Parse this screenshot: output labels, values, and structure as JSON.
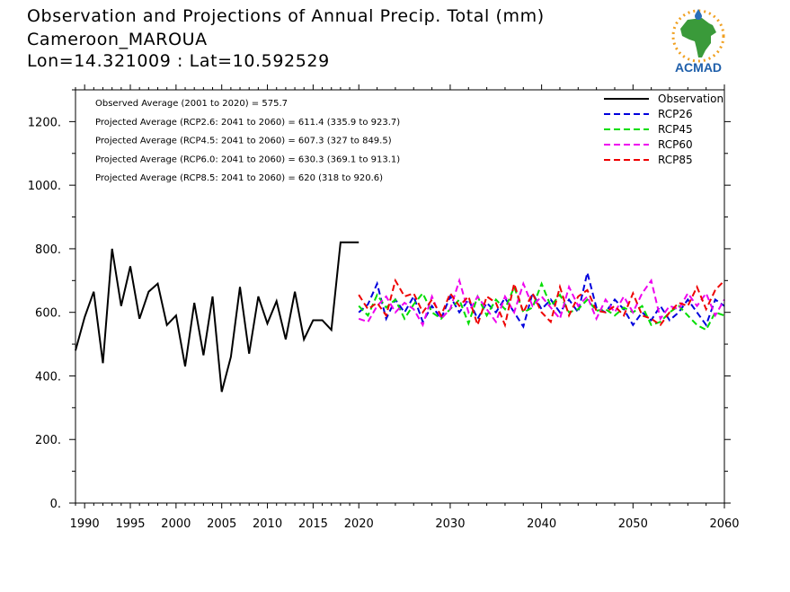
{
  "header": {
    "title": "Observation and Projections of Annual Precip. Total (mm)",
    "location": "Cameroon_MAROUA",
    "coords": "Lon=14.321009 : Lat=10.592529"
  },
  "logo": {
    "text": "ACMAD",
    "icon": "africa-map-logo-icon",
    "colors": {
      "africa": "#3a9a3a",
      "rays": "#f0a020",
      "drop": "#2a6fb8",
      "text": "#1f5faa"
    }
  },
  "chart_data": {
    "type": "line",
    "xlim": [
      1989,
      2060
    ],
    "ylim": [
      0,
      1300
    ],
    "xticks": [
      1990,
      1995,
      2000,
      2005,
      2010,
      2015,
      2020,
      2030,
      2040,
      2050,
      2060
    ],
    "yticks": [
      0,
      200,
      400,
      600,
      800,
      1000,
      1200
    ],
    "ytick_labels": [
      "0.",
      "200.",
      "400.",
      "600.",
      "800.",
      "1000.",
      "1200."
    ],
    "grid": false,
    "legend_position": "top-right",
    "annotations": [
      "Observed Average (2001 to 2020) = 575.7",
      "Projected Average (RCP2.6: 2041 to 2060) = 611.4 (335.9 to 923.7)",
      "Projected Average (RCP4.5: 2041 to 2060) = 607.3 (327 to 849.5)",
      "Projected Average (RCP6.0: 2041 to 2060) = 630.3 (369.1 to 913.1)",
      "Projected Average (RCP8.5: 2041 to 2060) = 620 (318 to 920.6)"
    ],
    "series": [
      {
        "name": "Observation",
        "color": "#000000",
        "dashed": false,
        "x": [
          1989,
          1990,
          1991,
          1992,
          1993,
          1994,
          1995,
          1996,
          1997,
          1998,
          1999,
          2000,
          2001,
          2002,
          2003,
          2004,
          2005,
          2006,
          2007,
          2008,
          2009,
          2010,
          2011,
          2012,
          2013,
          2014,
          2015,
          2016,
          2017,
          2018,
          2019,
          2020
        ],
        "y": [
          480,
          585,
          665,
          440,
          800,
          620,
          745,
          580,
          665,
          690,
          560,
          590,
          430,
          630,
          465,
          650,
          350,
          460,
          680,
          470,
          650,
          565,
          635,
          515,
          665,
          515,
          575,
          575,
          545,
          820,
          820,
          820
        ]
      },
      {
        "name": "RCP26",
        "color": "#0000dd",
        "dashed": true,
        "x": [
          2020,
          2021,
          2022,
          2023,
          2024,
          2025,
          2026,
          2027,
          2028,
          2029,
          2030,
          2031,
          2032,
          2033,
          2034,
          2035,
          2036,
          2037,
          2038,
          2039,
          2040,
          2041,
          2042,
          2043,
          2044,
          2045,
          2046,
          2047,
          2048,
          2049,
          2050,
          2051,
          2052,
          2053,
          2054,
          2055,
          2056,
          2057,
          2058,
          2059,
          2060
        ],
        "y": [
          600,
          625,
          690,
          580,
          640,
          600,
          650,
          570,
          620,
          580,
          650,
          600,
          640,
          580,
          630,
          600,
          645,
          600,
          555,
          660,
          610,
          640,
          600,
          640,
          600,
          725,
          615,
          600,
          640,
          610,
          560,
          600,
          575,
          620,
          575,
          600,
          640,
          600,
          560,
          640,
          620
        ]
      },
      {
        "name": "RCP45",
        "color": "#00dd00",
        "dashed": true,
        "x": [
          2020,
          2021,
          2022,
          2023,
          2024,
          2025,
          2026,
          2027,
          2028,
          2029,
          2030,
          2031,
          2032,
          2033,
          2034,
          2035,
          2036,
          2037,
          2038,
          2039,
          2040,
          2041,
          2042,
          2043,
          2044,
          2045,
          2046,
          2047,
          2048,
          2049,
          2050,
          2051,
          2052,
          2053,
          2054,
          2055,
          2056,
          2057,
          2058,
          2059,
          2060
        ],
        "y": [
          620,
          590,
          655,
          615,
          640,
          580,
          625,
          660,
          600,
          580,
          610,
          640,
          565,
          650,
          590,
          640,
          610,
          680,
          600,
          615,
          690,
          620,
          655,
          600,
          610,
          640,
          605,
          610,
          590,
          615,
          600,
          620,
          560,
          570,
          600,
          620,
          590,
          560,
          545,
          600,
          590
        ]
      },
      {
        "name": "RCP60",
        "color": "#ee00ee",
        "dashed": true,
        "x": [
          2020,
          2021,
          2022,
          2023,
          2024,
          2025,
          2026,
          2027,
          2028,
          2029,
          2030,
          2031,
          2032,
          2033,
          2034,
          2035,
          2036,
          2037,
          2038,
          2039,
          2040,
          2041,
          2042,
          2043,
          2044,
          2045,
          2046,
          2047,
          2048,
          2049,
          2050,
          2051,
          2052,
          2053,
          2054,
          2055,
          2056,
          2057,
          2058,
          2059,
          2060
        ],
        "y": [
          580,
          570,
          620,
          650,
          600,
          630,
          610,
          560,
          650,
          580,
          610,
          700,
          600,
          650,
          610,
          570,
          650,
          600,
          690,
          620,
          650,
          615,
          580,
          680,
          620,
          650,
          580,
          640,
          600,
          650,
          600,
          660,
          700,
          580,
          620,
          610,
          660,
          620,
          660,
          590,
          640
        ]
      },
      {
        "name": "RCP85",
        "color": "#ee0000",
        "dashed": true,
        "x": [
          2020,
          2021,
          2022,
          2023,
          2024,
          2025,
          2026,
          2027,
          2028,
          2029,
          2030,
          2031,
          2032,
          2033,
          2034,
          2035,
          2036,
          2037,
          2038,
          2039,
          2040,
          2041,
          2042,
          2043,
          2044,
          2045,
          2046,
          2047,
          2048,
          2049,
          2050,
          2051,
          2052,
          2053,
          2054,
          2055,
          2056,
          2057,
          2058,
          2059,
          2060
        ],
        "y": [
          655,
          610,
          630,
          590,
          700,
          650,
          660,
          600,
          640,
          590,
          660,
          620,
          650,
          560,
          650,
          630,
          560,
          690,
          600,
          660,
          600,
          570,
          680,
          590,
          650,
          670,
          605,
          600,
          620,
          590,
          660,
          590,
          580,
          560,
          600,
          630,
          620,
          680,
          610,
          670,
          700
        ]
      }
    ]
  }
}
